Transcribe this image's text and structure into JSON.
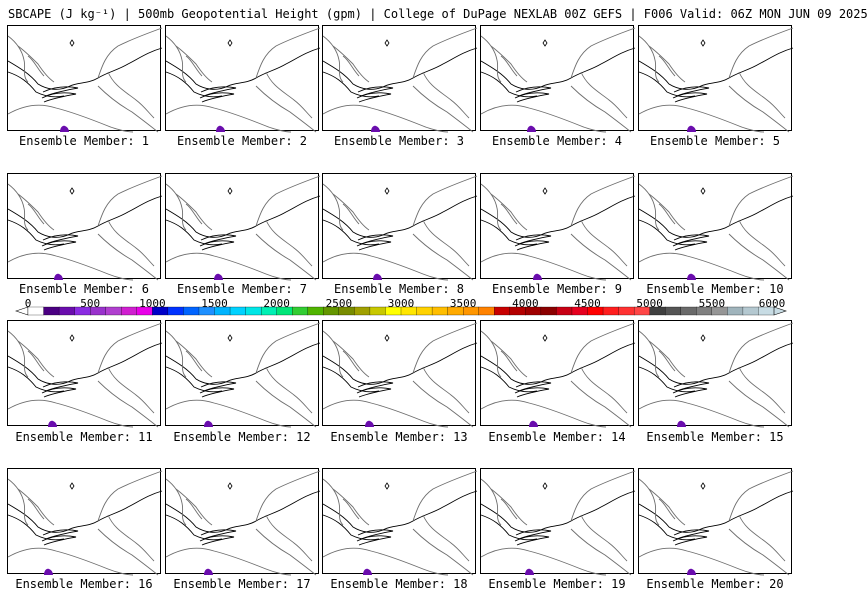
{
  "title": "SBCAPE (J kg⁻¹) | 500mb Geopotential Height (gpm) | College of DuPage NEXLAB 00Z GEFS | F006 Valid: 06Z MON JUN 09 2025",
  "caption_prefix": "Ensemble Member: ",
  "members": [
    {
      "label": "Ensemble Member: 1"
    },
    {
      "label": "Ensemble Member: 2"
    },
    {
      "label": "Ensemble Member: 3"
    },
    {
      "label": "Ensemble Member: 4"
    },
    {
      "label": "Ensemble Member: 5"
    },
    {
      "label": "Ensemble Member: 6"
    },
    {
      "label": "Ensemble Member: 7"
    },
    {
      "label": "Ensemble Member: 8"
    },
    {
      "label": "Ensemble Member: 9"
    },
    {
      "label": "Ensemble Member: 10"
    },
    {
      "label": "Ensemble Member: 11"
    },
    {
      "label": "Ensemble Member: 12"
    },
    {
      "label": "Ensemble Member: 13"
    },
    {
      "label": "Ensemble Member: 14"
    },
    {
      "label": "Ensemble Member: 15"
    },
    {
      "label": "Ensemble Member: 16"
    },
    {
      "label": "Ensemble Member: 17"
    },
    {
      "label": "Ensemble Member: 18"
    },
    {
      "label": "Ensemble Member: 19"
    },
    {
      "label": "Ensemble Member: 20"
    }
  ],
  "colorbar": {
    "ticks": [
      "0",
      "500",
      "1000",
      "1500",
      "2000",
      "2500",
      "3000",
      "3500",
      "4000",
      "4500",
      "5000",
      "5500",
      "6000"
    ],
    "colors": [
      "#ffffff",
      "#4b0082",
      "#6a0dad",
      "#8a2be2",
      "#9932cc",
      "#b03fcf",
      "#d01fd0",
      "#e800e8",
      "#0000c8",
      "#0032ff",
      "#0064ff",
      "#1e90ff",
      "#00b4ff",
      "#00d2ff",
      "#00e6e6",
      "#00f0b4",
      "#00e678",
      "#32cd32",
      "#50b400",
      "#649600",
      "#788c00",
      "#a0a000",
      "#c8c800",
      "#ffff00",
      "#ffe600",
      "#ffd200",
      "#ffbe00",
      "#ffaa00",
      "#ff9600",
      "#ff8200",
      "#c80000",
      "#b40000",
      "#a00000",
      "#8b0000",
      "#c80014",
      "#e6001e",
      "#ff0000",
      "#ff1e1e",
      "#ff3232",
      "#ff4646",
      "#404040",
      "#555555",
      "#6a6a6a",
      "#808080",
      "#969696",
      "#a0b4bc",
      "#b4c8d0",
      "#c8dce4"
    ],
    "cape_fill_color": "#6a0dad"
  }
}
